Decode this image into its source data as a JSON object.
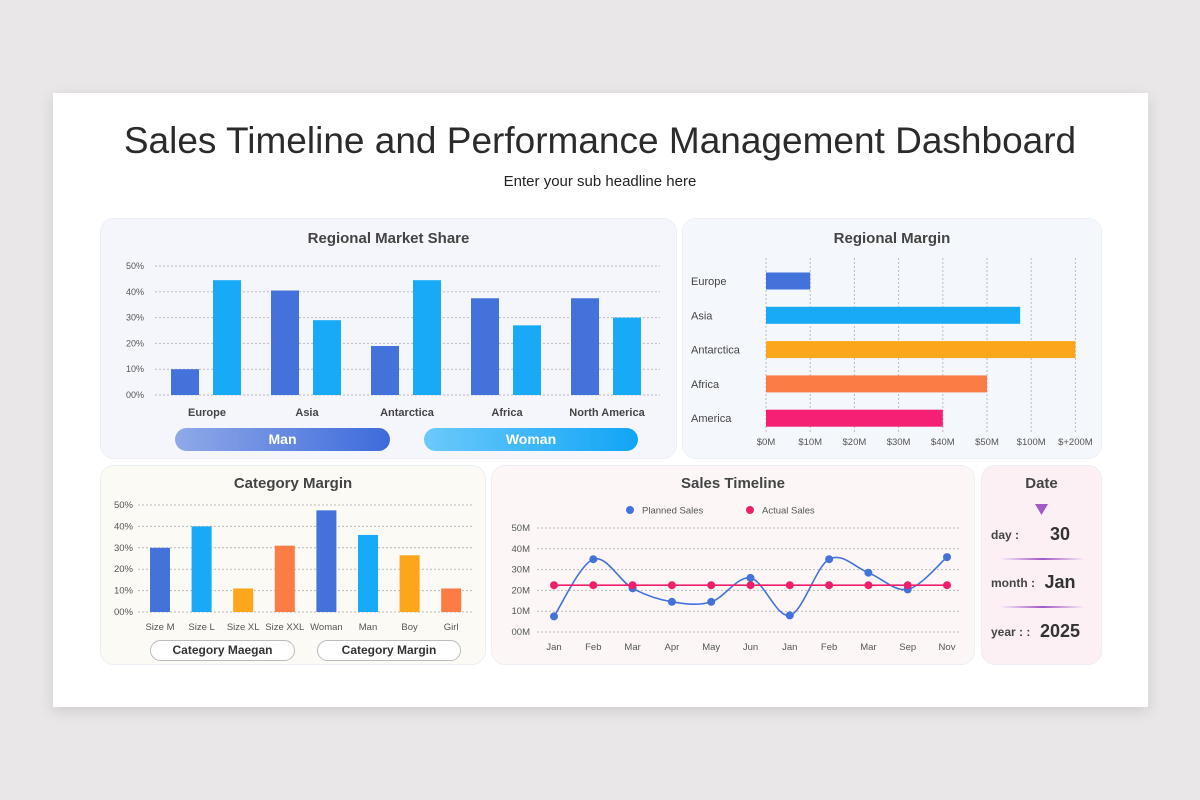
{
  "header": {
    "title": "Sales Timeline and Performance Management Dashboard",
    "subtitle": "Enter your sub headline here"
  },
  "chart_data": [
    {
      "id": "regional_market_share",
      "type": "bar",
      "title": "Regional Market Share",
      "categories": [
        "Europe",
        "Asia",
        "Antarctica",
        "Africa",
        "North America"
      ],
      "series": [
        {
          "name": "Man",
          "color": "#4472db",
          "values": [
            10,
            40.5,
            19,
            37.5,
            37.5
          ]
        },
        {
          "name": "Woman",
          "color": "#18aaf6",
          "values": [
            44.5,
            29,
            44.5,
            27,
            30
          ]
        }
      ],
      "yticks": [
        "00%",
        "10%",
        "20%",
        "30%",
        "40%",
        "50%"
      ],
      "ylim": [
        0,
        50
      ],
      "grid": true,
      "legend": "bottom"
    },
    {
      "id": "regional_margin",
      "type": "bar",
      "orientation": "horizontal",
      "title": "Regional Margin",
      "categories": [
        "Europe",
        "Asia",
        "Antarctica",
        "Africa",
        "America"
      ],
      "values": [
        10,
        87.5,
        200,
        50,
        40
      ],
      "colors": [
        "#4472db",
        "#18aaf6",
        "#fca61c",
        "#fb7c45",
        "#f51f74"
      ],
      "xtick_values": [
        0,
        10,
        20,
        30,
        40,
        50,
        100,
        200
      ],
      "xticks": [
        "$0M",
        "$10M",
        "$20M",
        "$30M",
        "$40M",
        "$50M",
        "$100M",
        "$+200M"
      ],
      "grid": true
    },
    {
      "id": "category_margin",
      "type": "bar",
      "title": "Category Margin",
      "categories": [
        "Size M",
        "Size L",
        "Size XL",
        "Size XXL",
        "Woman",
        "Man",
        "Boy",
        "Girl"
      ],
      "values": [
        30,
        40,
        11,
        31,
        47.5,
        36,
        26.5,
        11
      ],
      "colors": [
        "#4472db",
        "#18aaf6",
        "#fca61c",
        "#fb7c45",
        "#4472db",
        "#18aaf6",
        "#fca61c",
        "#fb7c45"
      ],
      "yticks": [
        "00%",
        "10%",
        "20%",
        "30%",
        "40%",
        "50%"
      ],
      "ylim": [
        0,
        50
      ],
      "grid": true
    },
    {
      "id": "sales_timeline",
      "type": "line",
      "title": "Sales Timeline",
      "categories": [
        "Jan",
        "Feb",
        "Mar",
        "Apr",
        "May",
        "Jun",
        "Jan",
        "Feb",
        "Mar",
        "Sep",
        "Nov"
      ],
      "series": [
        {
          "name": "Planned Sales",
          "color": "#4472db",
          "values": [
            7.5,
            35,
            21,
            14.5,
            14.5,
            26,
            8,
            35,
            28.5,
            20.5,
            36
          ]
        },
        {
          "name": "Actual Sales",
          "color": "#ef1f6c",
          "values": [
            22.5,
            22.5,
            22.5,
            22.5,
            22.5,
            22.5,
            22.5,
            22.5,
            22.5,
            22.5,
            22.5
          ]
        }
      ],
      "yticks": [
        "00M",
        "10M",
        "20M",
        "30M",
        "40M",
        "50M"
      ],
      "ylim": [
        0,
        50
      ],
      "grid": true,
      "legend": "top"
    }
  ],
  "legend_buttons": {
    "man": "Man",
    "woman": "Woman",
    "category_maegan": "Category Maegan",
    "category_margin": "Category Margin"
  },
  "date": {
    "title": "Date",
    "day_label": "day :",
    "day": "30",
    "month_label": "month :",
    "month": "Jan",
    "year_label": "year : :",
    "year": "2025"
  }
}
